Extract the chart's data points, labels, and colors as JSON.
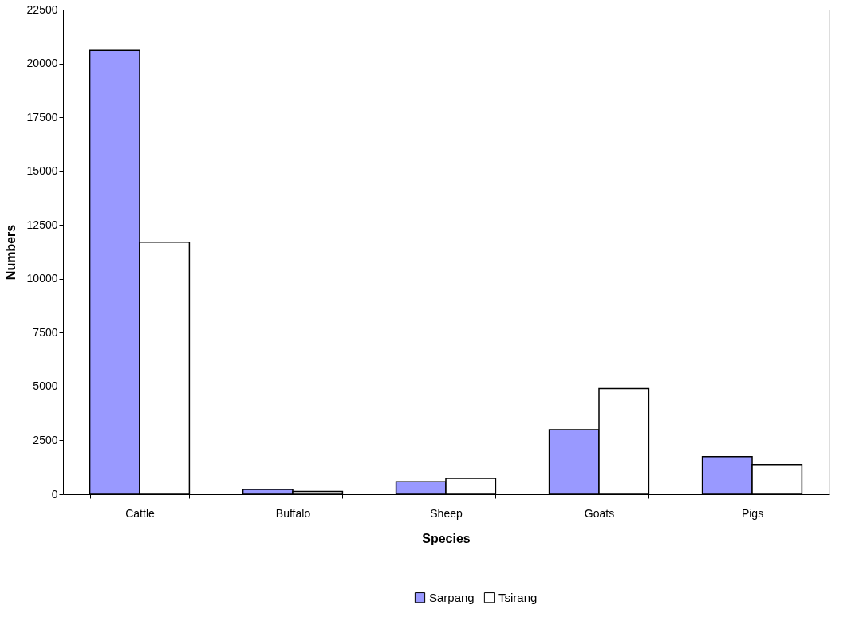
{
  "chart_data": {
    "type": "bar",
    "xlabel": "Species",
    "ylabel": "Numbers",
    "categories": [
      "Cattle",
      "Buffalo",
      "Sheep",
      "Goats",
      "Pigs"
    ],
    "series": [
      {
        "name": "Sarpang",
        "color": "#9999ff",
        "values": [
          20600,
          220,
          580,
          3000,
          1750
        ]
      },
      {
        "name": "Tsirang",
        "color": "#ffffff",
        "values": [
          11700,
          130,
          740,
          4900,
          1380
        ]
      }
    ],
    "ylim": [
      0,
      22500
    ],
    "yticks": [
      0,
      2500,
      5000,
      7500,
      10000,
      12500,
      15000,
      17500,
      20000,
      22500
    ],
    "grid": false,
    "legend": "bottom"
  }
}
